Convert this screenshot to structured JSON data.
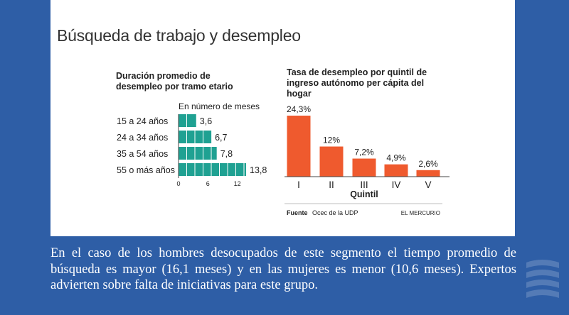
{
  "title": "Búsqueda de trabajo y desempleo",
  "caption": "En el caso de los hombres desocupados de este segmento el tiempo promedio de búsqueda es mayor (16,1 meses) y en las mujeres es menor (10,6 meses). Expertos advierten sobre falta de iniciativas para este grupo.",
  "colors": {
    "background": "#2e5ea6",
    "left_bars": "#1fa192",
    "right_bars": "#ef5a2e"
  },
  "footer": {
    "source_label": "Fuente",
    "source_text": "Ocec de la UDP",
    "publisher": "EL MERCURIO"
  },
  "chart_data": [
    {
      "type": "bar",
      "orientation": "horizontal",
      "title": "Duración promedio de desempleo por tramo etario",
      "subtitle": "En número de meses",
      "categories": [
        "15 a 24 años",
        "24 a 34 años",
        "35 a 54 años",
        "55 o más años"
      ],
      "values": [
        3.6,
        6.7,
        7.8,
        13.8
      ],
      "value_labels": [
        "3,6",
        "6,7",
        "7,8",
        "13,8"
      ],
      "ticks": [
        "0",
        "6",
        "12"
      ],
      "xlim": [
        0,
        13.8
      ]
    },
    {
      "type": "bar",
      "title": "Tasa de desempleo por quintil de ingreso autónomo per cápita del hogar",
      "xlabel": "Quintil",
      "categories": [
        "I",
        "II",
        "III",
        "IV",
        "V"
      ],
      "values": [
        24.3,
        12,
        7.2,
        4.9,
        2.6
      ],
      "value_labels": [
        "24,3%",
        "12%",
        "7,2%",
        "4,9%",
        "2,6%"
      ],
      "ylim": [
        0,
        24.3
      ]
    }
  ]
}
